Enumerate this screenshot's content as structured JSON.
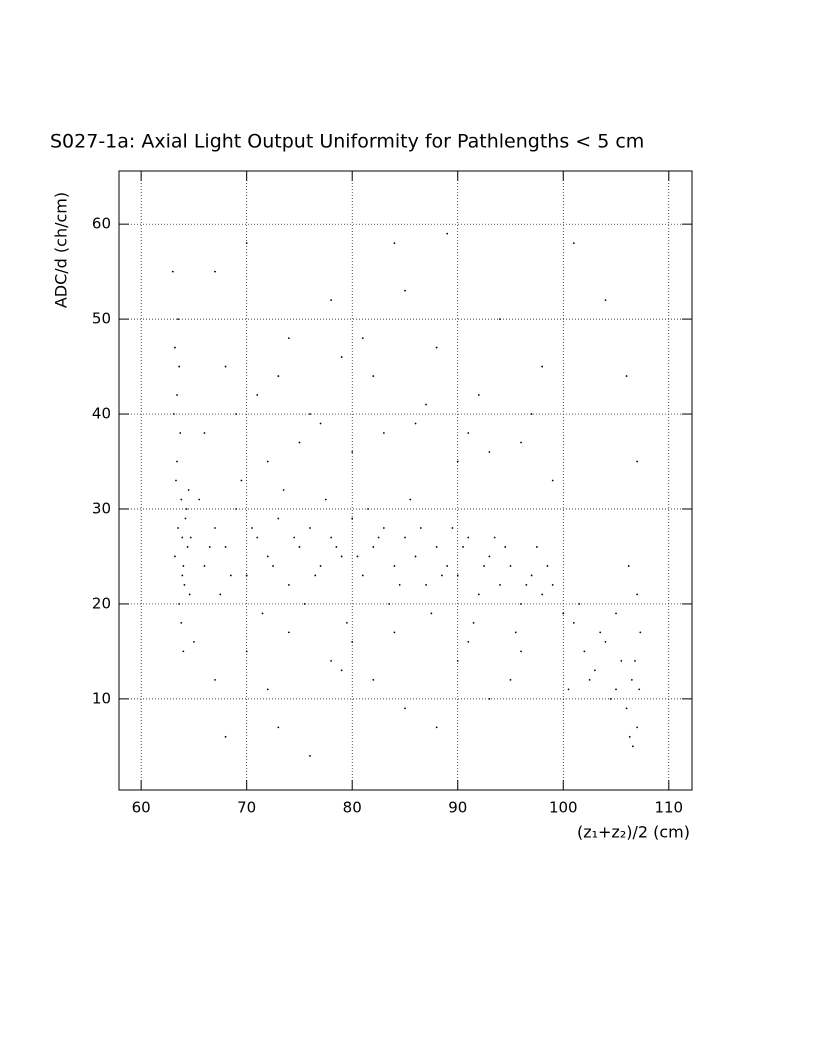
{
  "chart_data": {
    "type": "scatter",
    "title": "S027-1a: Axial Light Output Uniformity for Pathlengths < 5 cm",
    "x_label": "(z₁+z₂)/2 (cm)",
    "y_label": "ADC/d (ch/cm)",
    "xlim": [
      57.9,
      112.2
    ],
    "ylim": [
      0.4,
      65.6
    ],
    "xticks": [
      60,
      70,
      80,
      90,
      100,
      110
    ],
    "yticks": [
      10,
      20,
      30,
      40,
      50,
      60
    ],
    "grid": true,
    "color": "#000000",
    "x": [
      63.2,
      63.5,
      63.8,
      64.1,
      63.4,
      63.9,
      64.3,
      63.1,
      63.6,
      64.0,
      63.3,
      64.4,
      63.7,
      64.2,
      63.0,
      63.5,
      64.6,
      63.8,
      64.0,
      63.4,
      64.5,
      63.2,
      63.9,
      64.7,
      63.6,
      66,
      67,
      68,
      69,
      70,
      71,
      72,
      73,
      74,
      75,
      76,
      77,
      78,
      79,
      80,
      81,
      82,
      83,
      84,
      85,
      86,
      87,
      88,
      89,
      90,
      91,
      92,
      93,
      94,
      95,
      96,
      97,
      98,
      99,
      100,
      65.5,
      67.5,
      69.5,
      71.5,
      73.5,
      75.5,
      77.5,
      79.5,
      81.5,
      83.5,
      85.5,
      87.5,
      89.5,
      91.5,
      93.5,
      95.5,
      97.5,
      66.5,
      68.5,
      70.5,
      72.5,
      74.5,
      76.5,
      78.5,
      80.5,
      82.5,
      84.5,
      86.5,
      88.5,
      90.5,
      92.5,
      94.5,
      96.5,
      98.5,
      66,
      68,
      70,
      72,
      74,
      76,
      78,
      80,
      82,
      84,
      86,
      88,
      90,
      92,
      94,
      96,
      98,
      67,
      71,
      75,
      79,
      83,
      85,
      87,
      89,
      91,
      93,
      97,
      99,
      101,
      104,
      106,
      107,
      69,
      73,
      77,
      81,
      65,
      67,
      70,
      72,
      74,
      76,
      78,
      80,
      82,
      85,
      88,
      90,
      93,
      96,
      68,
      73,
      79,
      84,
      91,
      95,
      101,
      102,
      103,
      104,
      105,
      106,
      106.5,
      107,
      106.8,
      105.5,
      102.5,
      103.5,
      104.5,
      107.2,
      106.3,
      106.6,
      106.2,
      107,
      101.5,
      100.5,
      107.3,
      105
    ],
    "y": [
      25,
      28,
      31,
      22,
      35,
      27,
      30,
      40,
      45,
      24,
      33,
      26,
      38,
      29,
      55,
      50,
      21,
      18,
      15,
      42,
      32,
      47,
      23,
      27,
      20,
      24,
      28,
      26,
      30,
      23,
      27,
      25,
      29,
      22,
      26,
      28,
      24,
      27,
      25,
      29,
      23,
      26,
      28,
      24,
      27,
      25,
      22,
      26,
      24,
      23,
      27,
      21,
      25,
      22,
      24,
      20,
      23,
      21,
      22,
      19,
      31,
      21,
      33,
      19,
      32,
      20,
      31,
      18,
      30,
      20,
      31,
      19,
      28,
      18,
      27,
      17,
      26,
      26,
      23,
      28,
      24,
      27,
      23,
      26,
      25,
      27,
      22,
      28,
      23,
      26,
      24,
      26,
      22,
      24,
      38,
      45,
      58,
      35,
      48,
      40,
      52,
      36,
      44,
      58,
      39,
      47,
      35,
      42,
      50,
      37,
      45,
      55,
      42,
      37,
      46,
      38,
      53,
      41,
      59,
      38,
      36,
      40,
      33,
      58,
      52,
      44,
      35,
      40,
      44,
      39,
      48,
      16,
      12,
      15,
      11,
      17,
      4,
      14,
      16,
      12,
      9,
      7,
      14,
      10,
      15,
      6,
      7,
      13,
      17,
      16,
      12,
      18,
      15,
      13,
      16,
      11,
      9,
      12,
      7,
      14,
      14,
      12,
      17,
      10,
      11,
      6,
      5,
      24,
      21,
      20,
      11,
      17,
      19
    ]
  }
}
